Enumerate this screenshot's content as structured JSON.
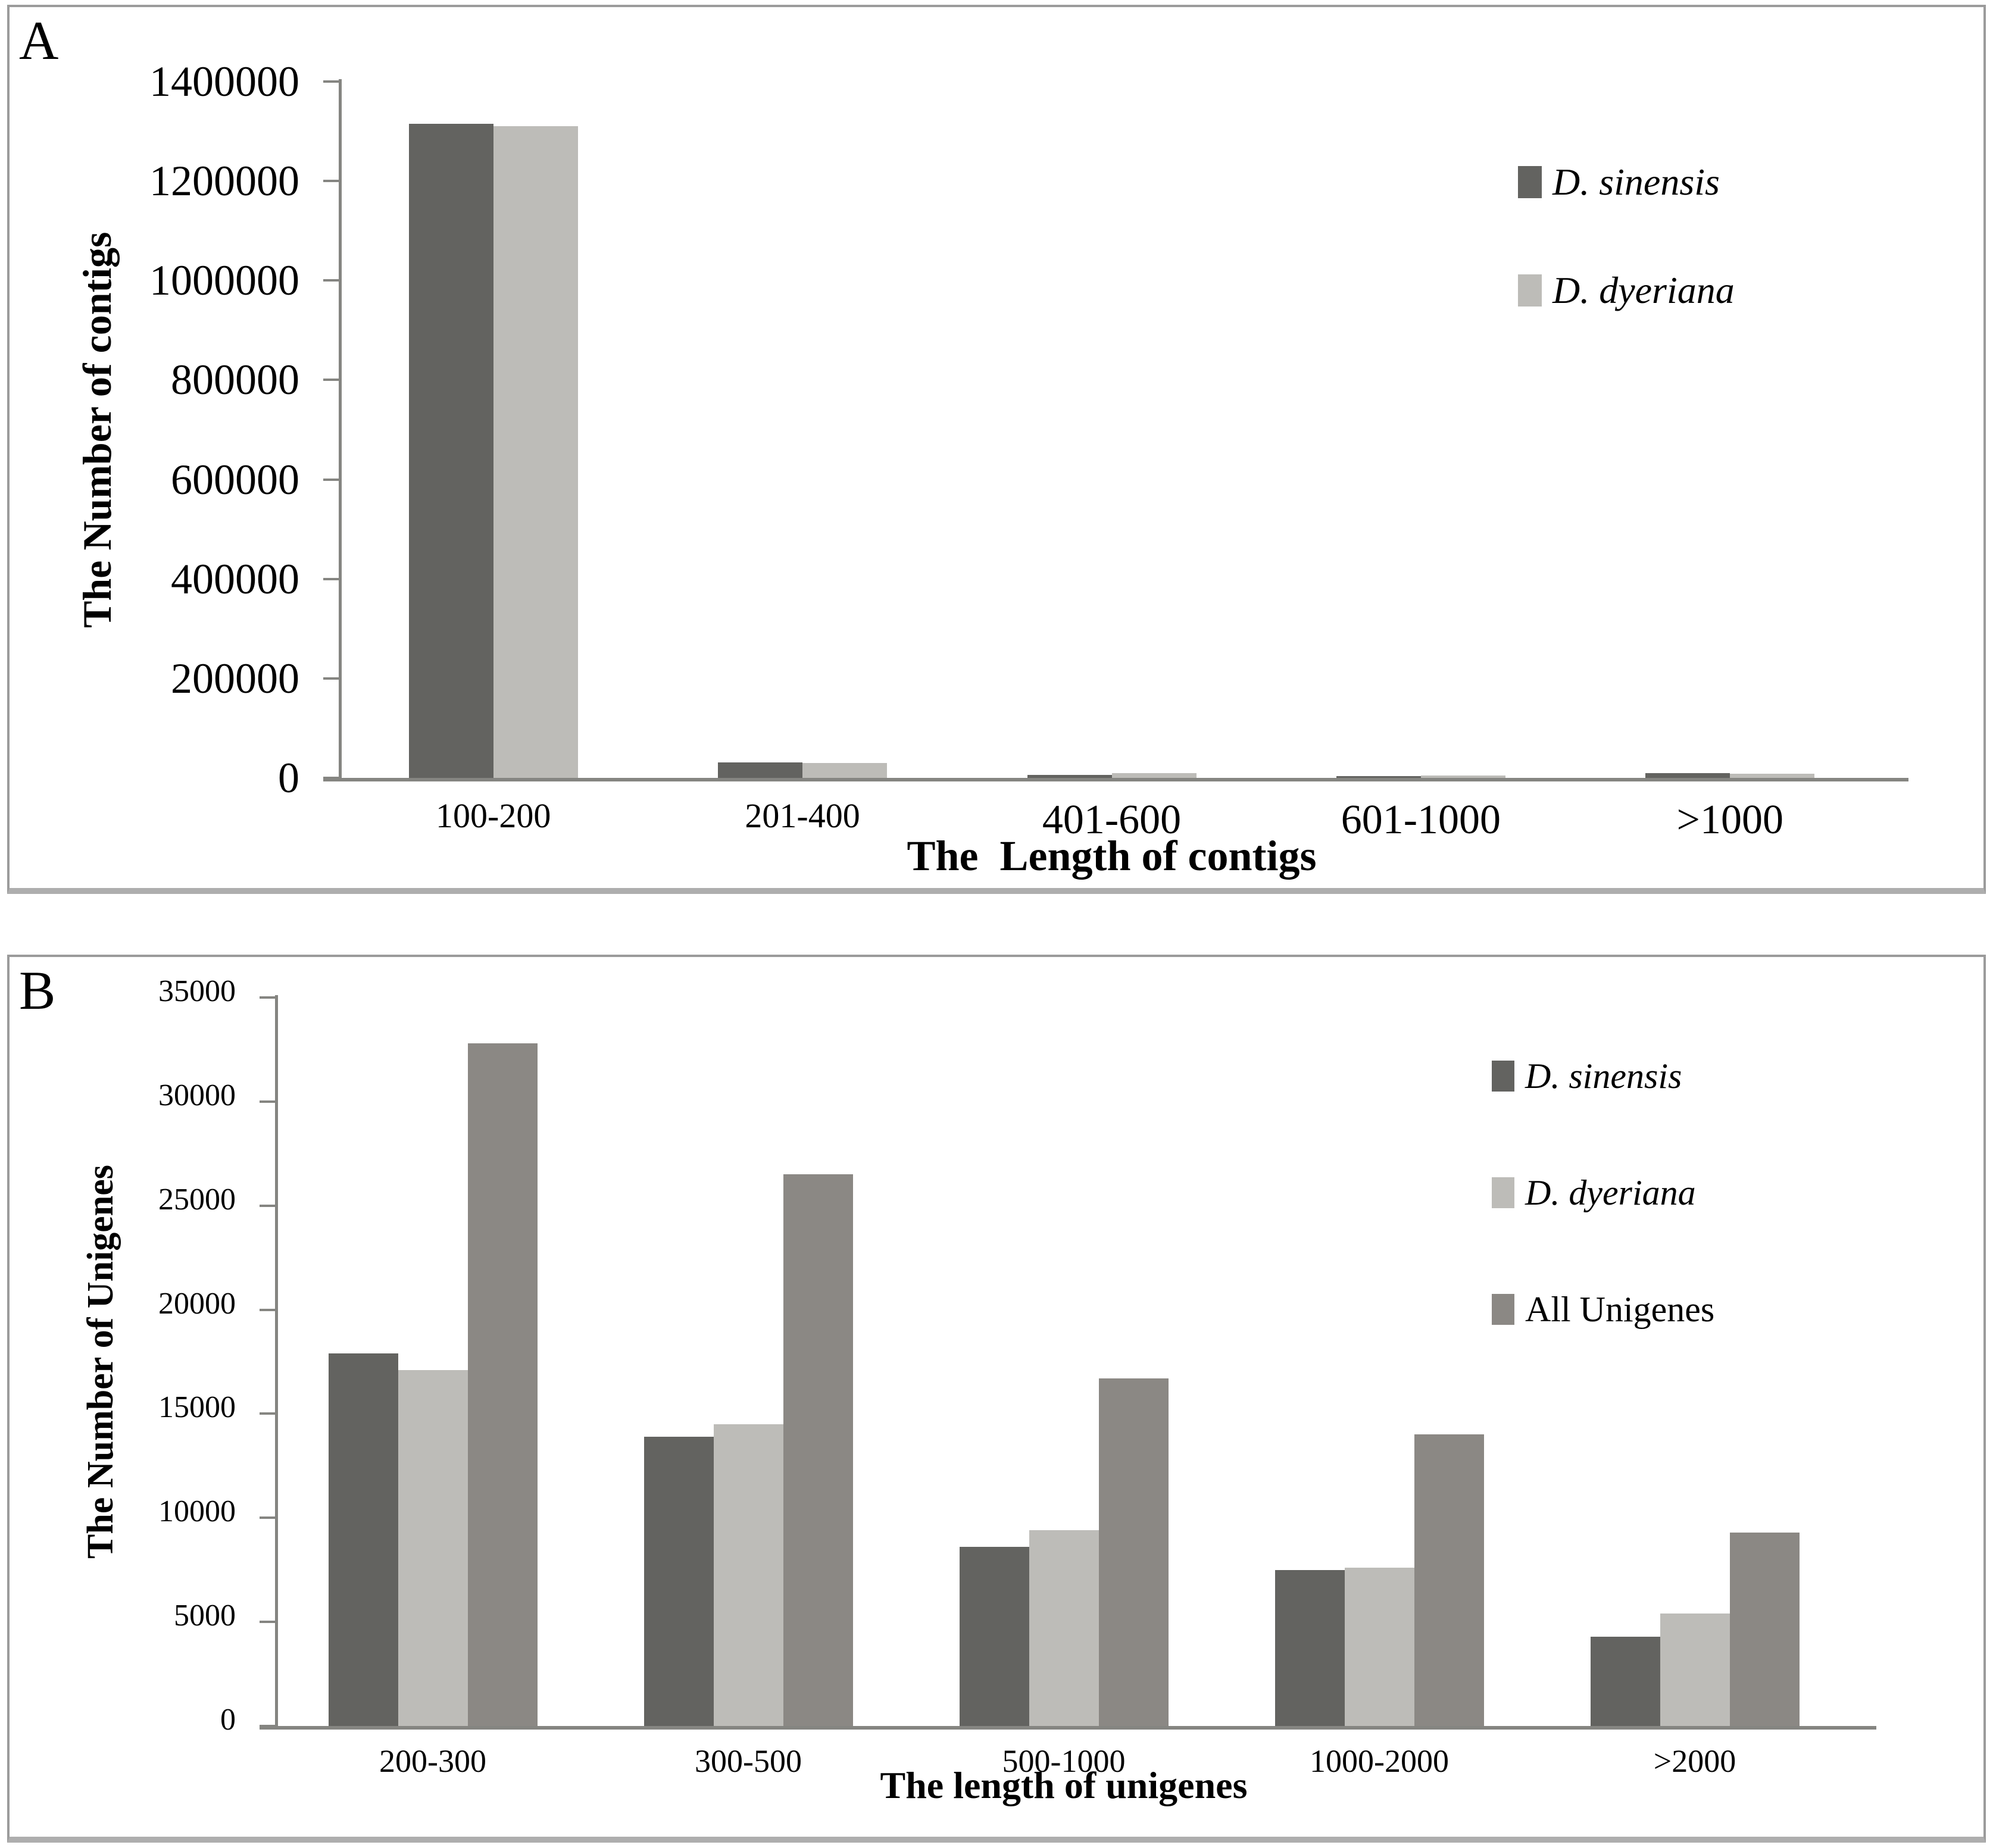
{
  "figure": {
    "background": "#ffffff",
    "panel_border_color": "#9b9b9b"
  },
  "chart_data": [
    {
      "panel_label": "A",
      "type": "bar",
      "title": "",
      "xlabel": "The  Length of contigs",
      "ylabel": "The Number of contigs",
      "categories": [
        "100-200",
        "201-400",
        "401-600",
        "601-1000",
        ">1000"
      ],
      "series": [
        {
          "name": "D. sinensis",
          "italic": true,
          "color": "#636360",
          "values": [
            1315000,
            31000,
            6000,
            3500,
            10000
          ]
        },
        {
          "name": "D. dyeriana",
          "italic": true,
          "color": "#bdbcb8",
          "values": [
            1310000,
            30000,
            9000,
            5300,
            7800
          ]
        }
      ],
      "ylim": [
        0,
        1400000
      ],
      "ytick_step": 200000,
      "ytick_labels": [
        "0",
        "200000",
        "400000",
        "600000",
        "800000",
        "1000000",
        "1200000",
        "1400000"
      ],
      "legend_position": "top-right",
      "grid": false
    },
    {
      "panel_label": "B",
      "type": "bar",
      "title": "",
      "xlabel": "The length of unigenes",
      "ylabel": "The Number of Unigenes",
      "categories": [
        "200-300",
        "300-500",
        "500-1000",
        "1000-2000",
        ">2000"
      ],
      "series": [
        {
          "name": "D. sinensis",
          "italic": true,
          "color": "#636360",
          "values": [
            17900,
            13900,
            8600,
            7500,
            4300
          ]
        },
        {
          "name": "D. dyeriana",
          "italic": true,
          "color": "#bdbcb8",
          "values": [
            17100,
            14500,
            9400,
            7600,
            5400
          ]
        },
        {
          "name": "All Unigenes",
          "italic": false,
          "color": "#8b8884",
          "values": [
            32800,
            26500,
            16700,
            14000,
            9300
          ]
        }
      ],
      "ylim": [
        0,
        35000
      ],
      "ytick_step": 5000,
      "ytick_labels": [
        "0",
        "5000",
        "10000",
        "15000",
        "20000",
        "25000",
        "30000",
        "35000"
      ],
      "legend_position": "top-right",
      "grid": false
    }
  ]
}
